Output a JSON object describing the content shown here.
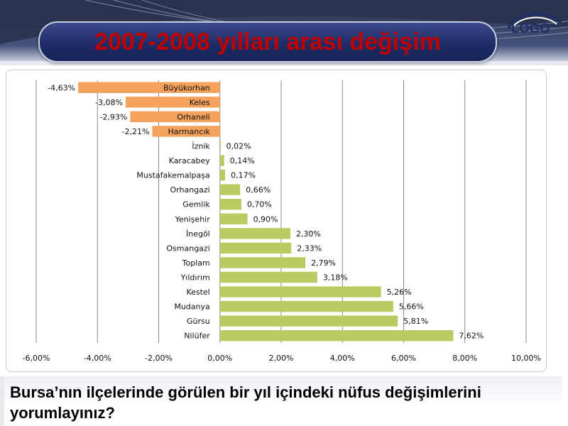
{
  "slide": {
    "title": "2007-2008 yılları arası değişim",
    "logo_text": "LOGO",
    "question": "Bursa’nın ilçelerinde  görülen bir yıl içindeki nüfus değişimlerini yorumlayınız?"
  },
  "colors": {
    "negative": "#f5a25d",
    "positive": "#b9cc62",
    "title_text": "#c00000",
    "title_pill": "#1e2c66"
  },
  "chart_data": {
    "type": "bar",
    "orientation": "horizontal",
    "title": "",
    "xlabel": "",
    "ylabel": "",
    "xlim": [
      -6,
      10
    ],
    "x_ticks": [
      "-6,00%",
      "-4,00%",
      "-2,00%",
      "0,00%",
      "2,00%",
      "4,00%",
      "6,00%",
      "8,00%",
      "10,00%"
    ],
    "x_tick_values": [
      -6,
      -4,
      -2,
      0,
      2,
      4,
      6,
      8,
      10
    ],
    "grid": true,
    "legend": "none",
    "categories": [
      "Büyükorhan",
      "Keles",
      "Orhaneli",
      "Harmancık",
      "İznik",
      "Karacabey",
      "Mustafakemalpaşa",
      "Orhangazi",
      "Gemlik",
      "Yenişehir",
      "İnegöl",
      "Osmangazi",
      "Toplam",
      "Yıldırım",
      "Kestel",
      "Mudanya",
      "Gürsu",
      "Nilüfer"
    ],
    "values": [
      -4.63,
      -3.08,
      -2.93,
      -2.21,
      0.02,
      0.14,
      0.17,
      0.66,
      0.7,
      0.9,
      2.3,
      2.33,
      2.79,
      3.18,
      5.26,
      5.66,
      5.81,
      7.62
    ],
    "value_labels": [
      "-4,63%",
      "-3,08%",
      "-2,93%",
      "-2,21%",
      "0,02%",
      "0,14%",
      "0,17%",
      "0,66%",
      "0,70%",
      "0,90%",
      "2,30%",
      "2,33%",
      "2,79%",
      "3,18%",
      "5,26%",
      "5,66%",
      "5,81%",
      "7,62%"
    ]
  }
}
